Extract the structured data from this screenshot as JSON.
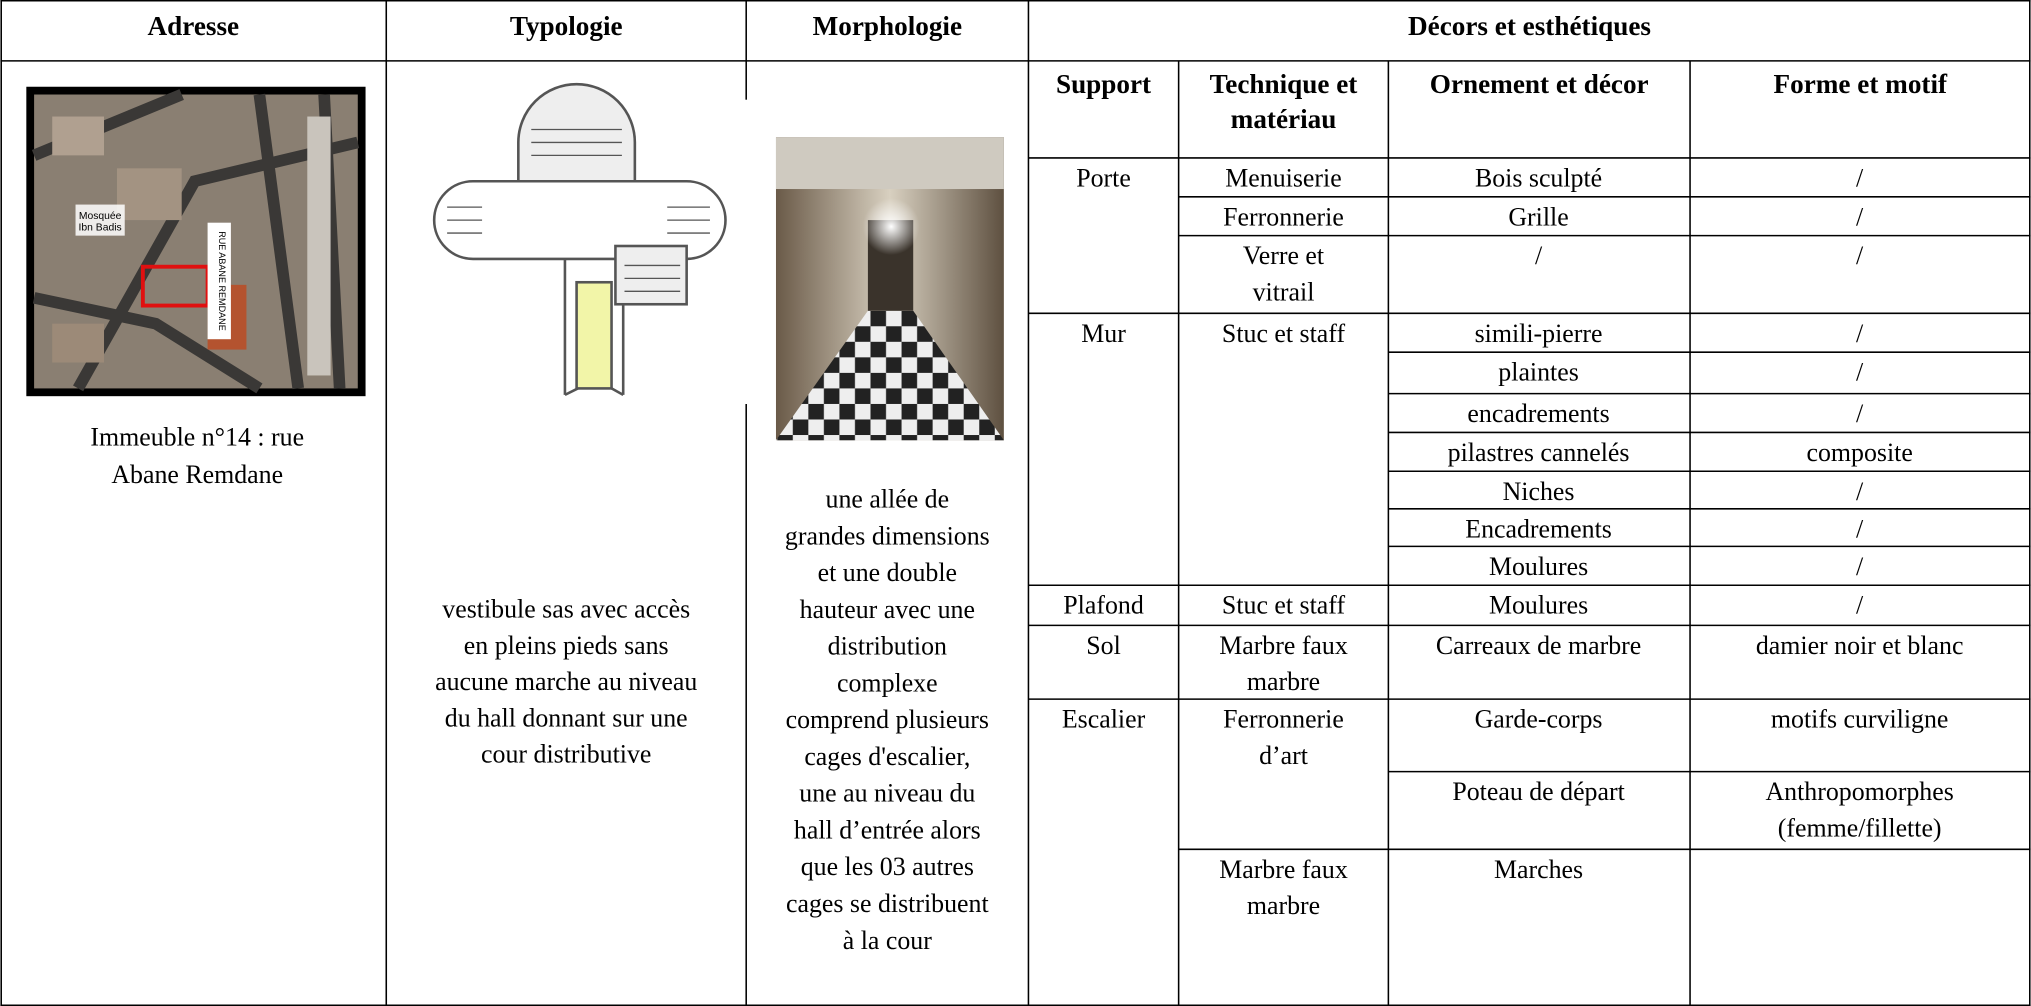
{
  "header": {
    "columns": [
      "Adresse",
      "Typologie",
      "Morphologie",
      "Décors et esthétiques"
    ]
  },
  "subheader": [
    [
      "Support"
    ],
    [
      "Technique et",
      "matériau"
    ],
    [
      "Ornement et décor"
    ],
    [
      "Forme et motif"
    ]
  ],
  "address": [
    "Immeuble n°14 : rue",
    "Abane Remdane"
  ],
  "map_labels": [
    "Mosquée",
    "Ibn Badis",
    "RUE ABANE REMDANE"
  ],
  "typologie": [
    "vestibule sas avec accès",
    "en pleins pieds sans",
    "aucune marche au niveau",
    "du hall donnant sur une",
    "cour distributive"
  ],
  "morphologie": [
    "une allée de",
    "grandes dimensions",
    "et une double",
    "hauteur avec une",
    "distribution",
    "complexe",
    "comprend plusieurs",
    "cages d'escalier,",
    "une au niveau du",
    "hall d’entrée alors",
    "que les 03 autres",
    "cages se distribuent",
    "à la cour"
  ],
  "supports": [
    "Porte",
    "Mur",
    "Plafond",
    "Sol",
    "Escalier"
  ],
  "techniques": [
    [
      "Menuiserie"
    ],
    [
      "Ferronnerie"
    ],
    [
      "Verre et",
      "vitrail"
    ],
    [
      "Stuc et staff"
    ],
    [
      "Stuc et staff"
    ],
    [
      "Marbre faux",
      "marbre"
    ],
    [
      "Ferronnerie",
      "d’art"
    ],
    [
      "Marbre faux",
      "marbre"
    ]
  ],
  "ornements": [
    "Bois sculpté",
    "Grille",
    "/",
    "simili-pierre",
    "plaintes",
    "encadrements",
    "pilastres cannelés",
    "Niches",
    "Encadrements",
    "Moulures",
    "Moulures",
    "Carreaux de marbre",
    "Garde-corps",
    "Poteau de départ",
    "Marches"
  ],
  "formes": [
    [
      "/"
    ],
    [
      "/"
    ],
    [
      "/"
    ],
    [
      "/"
    ],
    [
      "/"
    ],
    [
      "/"
    ],
    [
      "composite"
    ],
    [
      "/"
    ],
    [
      "/"
    ],
    [
      "/"
    ],
    [
      "/"
    ],
    [
      "damier noir et blanc"
    ],
    [
      "motifs curviligne"
    ],
    [
      "Anthropomorphes",
      "(femme/fillette)"
    ]
  ]
}
